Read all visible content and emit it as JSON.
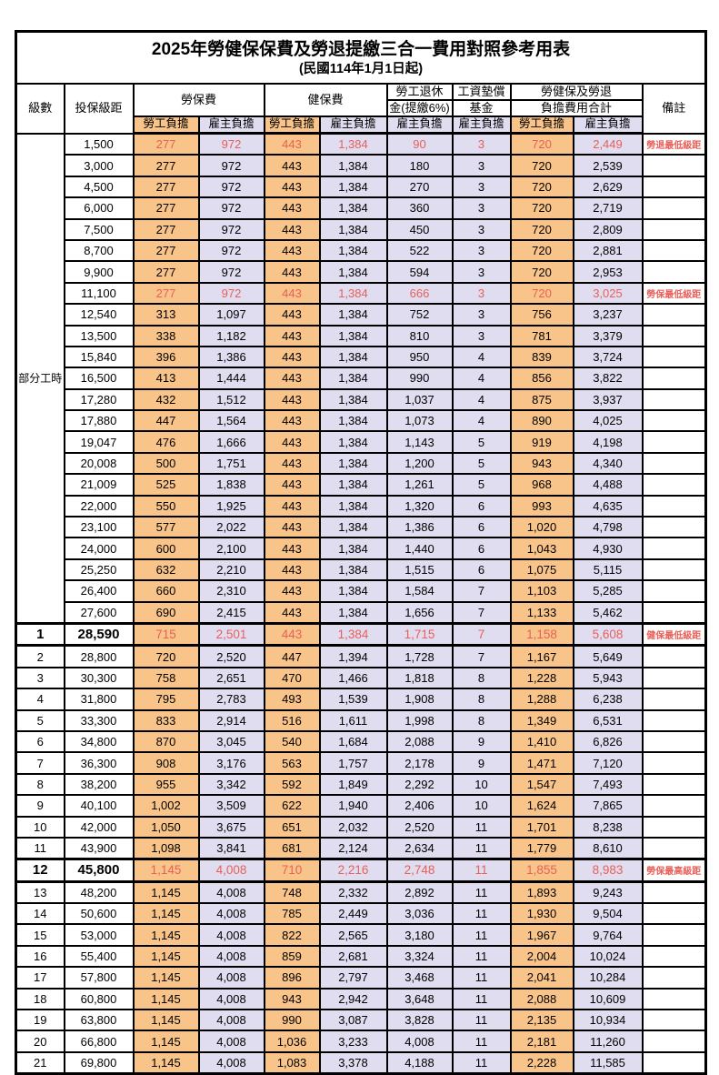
{
  "title": "2025年勞健保保費及勞退提繳三合一費用對照參考用表",
  "subtitle": "(民國114年1月1日起)",
  "header": {
    "level": "級數",
    "bracket": "投保級距",
    "labor_insurance": "勞保費",
    "health_insurance": "健保費",
    "pension_line1": "勞工退休",
    "pension_line2": "金(提繳6%)",
    "wage_fund_line1": "工資墊償",
    "wage_fund_line2": "基金",
    "total_line1": "勞健保及勞退",
    "total_line2": "負擔費用合計",
    "remarks": "備註",
    "employee": "勞工負擔",
    "employer": "雇主負擔"
  },
  "part_time_label": "部分工時",
  "colors": {
    "employee_bg": "#F8C489",
    "employer_bg": "#DFDDEF",
    "highlight_red": "#E8605A"
  },
  "rows": [
    {
      "level": "",
      "bracket": "1,500",
      "values": [
        "277",
        "972",
        "443",
        "1,384",
        "90",
        "3",
        "720",
        "2,449"
      ],
      "note": "勞退最低級距",
      "red": true,
      "bold": false
    },
    {
      "level": "",
      "bracket": "3,000",
      "values": [
        "277",
        "972",
        "443",
        "1,384",
        "180",
        "3",
        "720",
        "2,539"
      ],
      "note": "",
      "red": false,
      "bold": false
    },
    {
      "level": "",
      "bracket": "4,500",
      "values": [
        "277",
        "972",
        "443",
        "1,384",
        "270",
        "3",
        "720",
        "2,629"
      ],
      "note": "",
      "red": false,
      "bold": false
    },
    {
      "level": "",
      "bracket": "6,000",
      "values": [
        "277",
        "972",
        "443",
        "1,384",
        "360",
        "3",
        "720",
        "2,719"
      ],
      "note": "",
      "red": false,
      "bold": false
    },
    {
      "level": "",
      "bracket": "7,500",
      "values": [
        "277",
        "972",
        "443",
        "1,384",
        "450",
        "3",
        "720",
        "2,809"
      ],
      "note": "",
      "red": false,
      "bold": false
    },
    {
      "level": "",
      "bracket": "8,700",
      "values": [
        "277",
        "972",
        "443",
        "1,384",
        "522",
        "3",
        "720",
        "2,881"
      ],
      "note": "",
      "red": false,
      "bold": false
    },
    {
      "level": "",
      "bracket": "9,900",
      "values": [
        "277",
        "972",
        "443",
        "1,384",
        "594",
        "3",
        "720",
        "2,953"
      ],
      "note": "",
      "red": false,
      "bold": false
    },
    {
      "level": "",
      "bracket": "11,100",
      "values": [
        "277",
        "972",
        "443",
        "1,384",
        "666",
        "3",
        "720",
        "3,025"
      ],
      "note": "勞保最低級距",
      "red": true,
      "bold": false
    },
    {
      "level": "",
      "bracket": "12,540",
      "values": [
        "313",
        "1,097",
        "443",
        "1,384",
        "752",
        "3",
        "756",
        "3,237"
      ],
      "note": "",
      "red": false,
      "bold": false
    },
    {
      "level": "",
      "bracket": "13,500",
      "values": [
        "338",
        "1,182",
        "443",
        "1,384",
        "810",
        "3",
        "781",
        "3,379"
      ],
      "note": "",
      "red": false,
      "bold": false
    },
    {
      "level": "",
      "bracket": "15,840",
      "values": [
        "396",
        "1,386",
        "443",
        "1,384",
        "950",
        "4",
        "839",
        "3,724"
      ],
      "note": "",
      "red": false,
      "bold": false
    },
    {
      "level": "",
      "bracket": "16,500",
      "values": [
        "413",
        "1,444",
        "443",
        "1,384",
        "990",
        "4",
        "856",
        "3,822"
      ],
      "note": "",
      "red": false,
      "bold": false
    },
    {
      "level": "",
      "bracket": "17,280",
      "values": [
        "432",
        "1,512",
        "443",
        "1,384",
        "1,037",
        "4",
        "875",
        "3,937"
      ],
      "note": "",
      "red": false,
      "bold": false
    },
    {
      "level": "",
      "bracket": "17,880",
      "values": [
        "447",
        "1,564",
        "443",
        "1,384",
        "1,073",
        "4",
        "890",
        "4,025"
      ],
      "note": "",
      "red": false,
      "bold": false
    },
    {
      "level": "",
      "bracket": "19,047",
      "values": [
        "476",
        "1,666",
        "443",
        "1,384",
        "1,143",
        "5",
        "919",
        "4,198"
      ],
      "note": "",
      "red": false,
      "bold": false
    },
    {
      "level": "",
      "bracket": "20,008",
      "values": [
        "500",
        "1,751",
        "443",
        "1,384",
        "1,200",
        "5",
        "943",
        "4,340"
      ],
      "note": "",
      "red": false,
      "bold": false
    },
    {
      "level": "",
      "bracket": "21,009",
      "values": [
        "525",
        "1,838",
        "443",
        "1,384",
        "1,261",
        "5",
        "968",
        "4,488"
      ],
      "note": "",
      "red": false,
      "bold": false
    },
    {
      "level": "",
      "bracket": "22,000",
      "values": [
        "550",
        "1,925",
        "443",
        "1,384",
        "1,320",
        "6",
        "993",
        "4,635"
      ],
      "note": "",
      "red": false,
      "bold": false
    },
    {
      "level": "",
      "bracket": "23,100",
      "values": [
        "577",
        "2,022",
        "443",
        "1,384",
        "1,386",
        "6",
        "1,020",
        "4,798"
      ],
      "note": "",
      "red": false,
      "bold": false
    },
    {
      "level": "",
      "bracket": "24,000",
      "values": [
        "600",
        "2,100",
        "443",
        "1,384",
        "1,440",
        "6",
        "1,043",
        "4,930"
      ],
      "note": "",
      "red": false,
      "bold": false
    },
    {
      "level": "",
      "bracket": "25,250",
      "values": [
        "632",
        "2,210",
        "443",
        "1,384",
        "1,515",
        "6",
        "1,075",
        "5,115"
      ],
      "note": "",
      "red": false,
      "bold": false
    },
    {
      "level": "",
      "bracket": "26,400",
      "values": [
        "660",
        "2,310",
        "443",
        "1,384",
        "1,584",
        "7",
        "1,103",
        "5,285"
      ],
      "note": "",
      "red": false,
      "bold": false
    },
    {
      "level": "",
      "bracket": "27,600",
      "values": [
        "690",
        "2,415",
        "443",
        "1,384",
        "1,656",
        "7",
        "1,133",
        "5,462"
      ],
      "note": "",
      "red": false,
      "bold": false
    },
    {
      "level": "1",
      "bracket": "28,590",
      "values": [
        "715",
        "2,501",
        "443",
        "1,384",
        "1,715",
        "7",
        "1,158",
        "5,608"
      ],
      "note": "健保最低級距",
      "red": true,
      "bold": true
    },
    {
      "level": "2",
      "bracket": "28,800",
      "values": [
        "720",
        "2,520",
        "447",
        "1,394",
        "1,728",
        "7",
        "1,167",
        "5,649"
      ],
      "note": "",
      "red": false,
      "bold": false
    },
    {
      "level": "3",
      "bracket": "30,300",
      "values": [
        "758",
        "2,651",
        "470",
        "1,466",
        "1,818",
        "8",
        "1,228",
        "5,943"
      ],
      "note": "",
      "red": false,
      "bold": false
    },
    {
      "level": "4",
      "bracket": "31,800",
      "values": [
        "795",
        "2,783",
        "493",
        "1,539",
        "1,908",
        "8",
        "1,288",
        "6,238"
      ],
      "note": "",
      "red": false,
      "bold": false
    },
    {
      "level": "5",
      "bracket": "33,300",
      "values": [
        "833",
        "2,914",
        "516",
        "1,611",
        "1,998",
        "8",
        "1,349",
        "6,531"
      ],
      "note": "",
      "red": false,
      "bold": false
    },
    {
      "level": "6",
      "bracket": "34,800",
      "values": [
        "870",
        "3,045",
        "540",
        "1,684",
        "2,088",
        "9",
        "1,410",
        "6,826"
      ],
      "note": "",
      "red": false,
      "bold": false
    },
    {
      "level": "7",
      "bracket": "36,300",
      "values": [
        "908",
        "3,176",
        "563",
        "1,757",
        "2,178",
        "9",
        "1,471",
        "7,120"
      ],
      "note": "",
      "red": false,
      "bold": false
    },
    {
      "level": "8",
      "bracket": "38,200",
      "values": [
        "955",
        "3,342",
        "592",
        "1,849",
        "2,292",
        "10",
        "1,547",
        "7,493"
      ],
      "note": "",
      "red": false,
      "bold": false
    },
    {
      "level": "9",
      "bracket": "40,100",
      "values": [
        "1,002",
        "3,509",
        "622",
        "1,940",
        "2,406",
        "10",
        "1,624",
        "7,865"
      ],
      "note": "",
      "red": false,
      "bold": false
    },
    {
      "level": "10",
      "bracket": "42,000",
      "values": [
        "1,050",
        "3,675",
        "651",
        "2,032",
        "2,520",
        "11",
        "1,701",
        "8,238"
      ],
      "note": "",
      "red": false,
      "bold": false
    },
    {
      "level": "11",
      "bracket": "43,900",
      "values": [
        "1,098",
        "3,841",
        "681",
        "2,124",
        "2,634",
        "11",
        "1,779",
        "8,610"
      ],
      "note": "",
      "red": false,
      "bold": false
    },
    {
      "level": "12",
      "bracket": "45,800",
      "values": [
        "1,145",
        "4,008",
        "710",
        "2,216",
        "2,748",
        "11",
        "1,855",
        "8,983"
      ],
      "note": "勞保最高級距",
      "red": true,
      "bold": true
    },
    {
      "level": "13",
      "bracket": "48,200",
      "values": [
        "1,145",
        "4,008",
        "748",
        "2,332",
        "2,892",
        "11",
        "1,893",
        "9,243"
      ],
      "note": "",
      "red": false,
      "bold": false
    },
    {
      "level": "14",
      "bracket": "50,600",
      "values": [
        "1,145",
        "4,008",
        "785",
        "2,449",
        "3,036",
        "11",
        "1,930",
        "9,504"
      ],
      "note": "",
      "red": false,
      "bold": false
    },
    {
      "level": "15",
      "bracket": "53,000",
      "values": [
        "1,145",
        "4,008",
        "822",
        "2,565",
        "3,180",
        "11",
        "1,967",
        "9,764"
      ],
      "note": "",
      "red": false,
      "bold": false
    },
    {
      "level": "16",
      "bracket": "55,400",
      "values": [
        "1,145",
        "4,008",
        "859",
        "2,681",
        "3,324",
        "11",
        "2,004",
        "10,024"
      ],
      "note": "",
      "red": false,
      "bold": false
    },
    {
      "level": "17",
      "bracket": "57,800",
      "values": [
        "1,145",
        "4,008",
        "896",
        "2,797",
        "3,468",
        "11",
        "2,041",
        "10,284"
      ],
      "note": "",
      "red": false,
      "bold": false
    },
    {
      "level": "18",
      "bracket": "60,800",
      "values": [
        "1,145",
        "4,008",
        "943",
        "2,942",
        "3,648",
        "11",
        "2,088",
        "10,609"
      ],
      "note": "",
      "red": false,
      "bold": false
    },
    {
      "level": "19",
      "bracket": "63,800",
      "values": [
        "1,145",
        "4,008",
        "990",
        "3,087",
        "3,828",
        "11",
        "2,135",
        "10,934"
      ],
      "note": "",
      "red": false,
      "bold": false
    },
    {
      "level": "20",
      "bracket": "66,800",
      "values": [
        "1,145",
        "4,008",
        "1,036",
        "3,233",
        "4,008",
        "11",
        "2,181",
        "11,260"
      ],
      "note": "",
      "red": false,
      "bold": false
    },
    {
      "level": "21",
      "bracket": "69,800",
      "values": [
        "1,145",
        "4,008",
        "1,083",
        "3,378",
        "4,188",
        "11",
        "2,228",
        "11,585"
      ],
      "note": "",
      "red": false,
      "bold": false
    }
  ]
}
